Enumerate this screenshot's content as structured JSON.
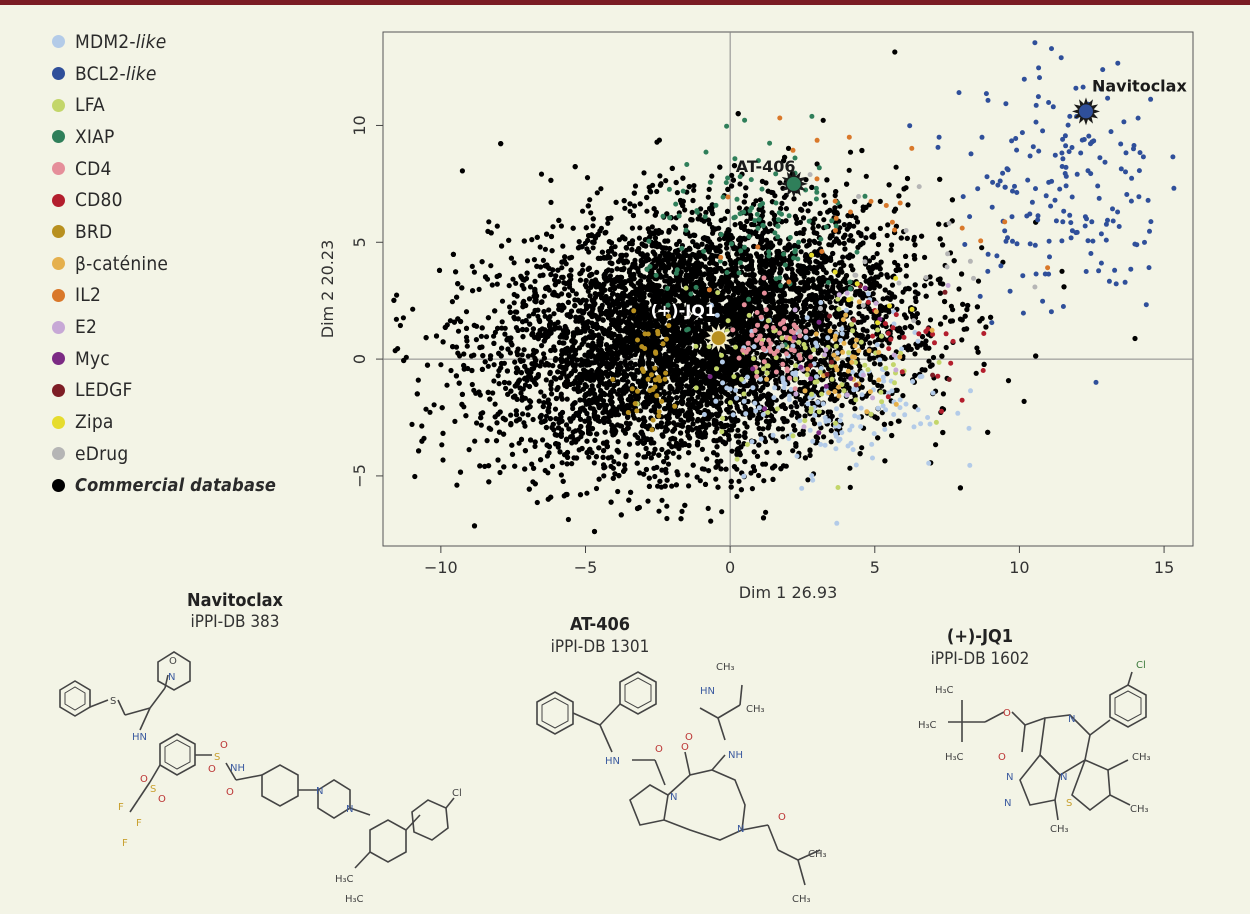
{
  "chart_data": {
    "type": "scatter",
    "xlabel": "Dim 1 26.93",
    "ylabel": "Dim 2 20.23",
    "xlim": [
      -12,
      16
    ],
    "ylim": [
      -8,
      14
    ],
    "xticks": [
      -10,
      -5,
      0,
      5,
      10,
      15
    ],
    "yticks": [
      -5,
      0,
      5,
      10
    ],
    "xtick_labels": [
      "−10",
      "−5",
      "0",
      "5",
      "10",
      "15"
    ],
    "ytick_labels": [
      "−5",
      "0",
      "5",
      "10"
    ],
    "reference_lines": {
      "x": 0,
      "y": 0
    },
    "legend_position": "left",
    "series": [
      {
        "name": "MDM2-like",
        "color": "#b3cbe8",
        "center": [
          3.5,
          -1.5
        ],
        "spread": [
          2.0,
          1.8
        ],
        "approx_points": 170
      },
      {
        "name": "BCL2-like",
        "color": "#2f4f9a",
        "center": [
          11.5,
          7.5
        ],
        "spread": [
          1.8,
          2.8
        ],
        "approx_points": 190
      },
      {
        "name": "LFA",
        "color": "#c3d66a",
        "center": [
          2.5,
          -0.5
        ],
        "spread": [
          2.0,
          1.6
        ],
        "approx_points": 90
      },
      {
        "name": "XIAP",
        "color": "#2f7f5a",
        "center": [
          1.2,
          5.5
        ],
        "spread": [
          2.0,
          1.8
        ],
        "approx_points": 110
      },
      {
        "name": "CD4",
        "color": "#e58e9a",
        "center": [
          1.5,
          0.5
        ],
        "spread": [
          0.8,
          0.9
        ],
        "approx_points": 60
      },
      {
        "name": "CD80",
        "color": "#b31e2d",
        "center": [
          6.5,
          0.5
        ],
        "spread": [
          1.0,
          1.5
        ],
        "approx_points": 25
      },
      {
        "name": "BRD",
        "color": "#b8901f",
        "center": [
          -2.8,
          -0.5
        ],
        "spread": [
          0.5,
          1.2
        ],
        "approx_points": 40
      },
      {
        "name": "β-caténine",
        "color": "#e5b04d",
        "center": [
          4.0,
          0.5
        ],
        "spread": [
          1.0,
          1.2
        ],
        "approx_points": 40
      },
      {
        "name": "IL2",
        "color": "#d9782a",
        "center": [
          3.0,
          6.5
        ],
        "spread": [
          2.5,
          1.5
        ],
        "approx_points": 25
      },
      {
        "name": "E2",
        "color": "#c7a8d6",
        "center": [
          4.0,
          0.0
        ],
        "spread": [
          1.5,
          1.5
        ],
        "approx_points": 15
      },
      {
        "name": "Myc",
        "color": "#7b2a84",
        "center": [
          3.5,
          -0.5
        ],
        "spread": [
          1.5,
          1.5
        ],
        "approx_points": 12
      },
      {
        "name": "LEDGF",
        "color": "#7d1d25",
        "center": [
          4.5,
          0.0
        ],
        "spread": [
          1.5,
          1.5
        ],
        "approx_points": 10
      },
      {
        "name": "Zipa",
        "color": "#e6dc2e",
        "center": [
          5.0,
          3.0
        ],
        "spread": [
          1.5,
          1.5
        ],
        "approx_points": 8
      },
      {
        "name": "eDrug",
        "color": "#b5b5b5",
        "center": [
          6.0,
          4.0
        ],
        "spread": [
          2.0,
          2.0
        ],
        "approx_points": 20
      },
      {
        "name": "Commercial database",
        "color": "#000000",
        "center": [
          -1.0,
          1.0
        ],
        "spread": [
          3.5,
          2.6
        ],
        "approx_points": 9000
      }
    ],
    "highlighted_compounds": [
      {
        "label": "Navitoclax",
        "x": 12.3,
        "y": 10.6,
        "color": "#2f4f9a",
        "label_color": "#1a1a1a"
      },
      {
        "label": "AT-406",
        "x": 2.2,
        "y": 7.5,
        "color": "#2f7f5a",
        "label_color": "#1a1a1a"
      },
      {
        "label": "(+)-JQ1",
        "x": -0.4,
        "y": 0.9,
        "color": "#b8901f",
        "label_color": "#ffffff"
      }
    ]
  },
  "legend": [
    {
      "name": "MDM2-",
      "italic_suffix": "like",
      "color": "#b3cbe8"
    },
    {
      "name": "BCL2-",
      "italic_suffix": "like",
      "color": "#2f4f9a"
    },
    {
      "name": "LFA",
      "italic_suffix": "",
      "color": "#c3d66a"
    },
    {
      "name": "XIAP",
      "italic_suffix": "",
      "color": "#2f7f5a"
    },
    {
      "name": "CD4",
      "italic_suffix": "",
      "color": "#e58e9a"
    },
    {
      "name": "CD80",
      "italic_suffix": "",
      "color": "#b31e2d"
    },
    {
      "name": "BRD",
      "italic_suffix": "",
      "color": "#b8901f"
    },
    {
      "name": "β-caténine",
      "italic_suffix": "",
      "color": "#e5b04d"
    },
    {
      "name": "IL2",
      "italic_suffix": "",
      "color": "#d9782a"
    },
    {
      "name": "E2",
      "italic_suffix": "",
      "color": "#c7a8d6"
    },
    {
      "name": "Myc",
      "italic_suffix": "",
      "color": "#7b2a84"
    },
    {
      "name": "LEDGF",
      "italic_suffix": "",
      "color": "#7d1d25"
    },
    {
      "name": "Zipa",
      "italic_suffix": "",
      "color": "#e6dc2e"
    },
    {
      "name": "eDrug",
      "italic_suffix": "",
      "color": "#b5b5b5"
    },
    {
      "name": "Commercial database",
      "italic_suffix": "",
      "color": "#000000",
      "bold": true
    }
  ],
  "molecules": {
    "navitoclax": {
      "title": "Navitoclax",
      "subtitle": "iPPI-DB 383"
    },
    "at406": {
      "title": "AT-406",
      "subtitle": "iPPI-DB 1301"
    },
    "jq1": {
      "title": "(+)-JQ1",
      "subtitle": "iPPI-DB 1602"
    }
  }
}
